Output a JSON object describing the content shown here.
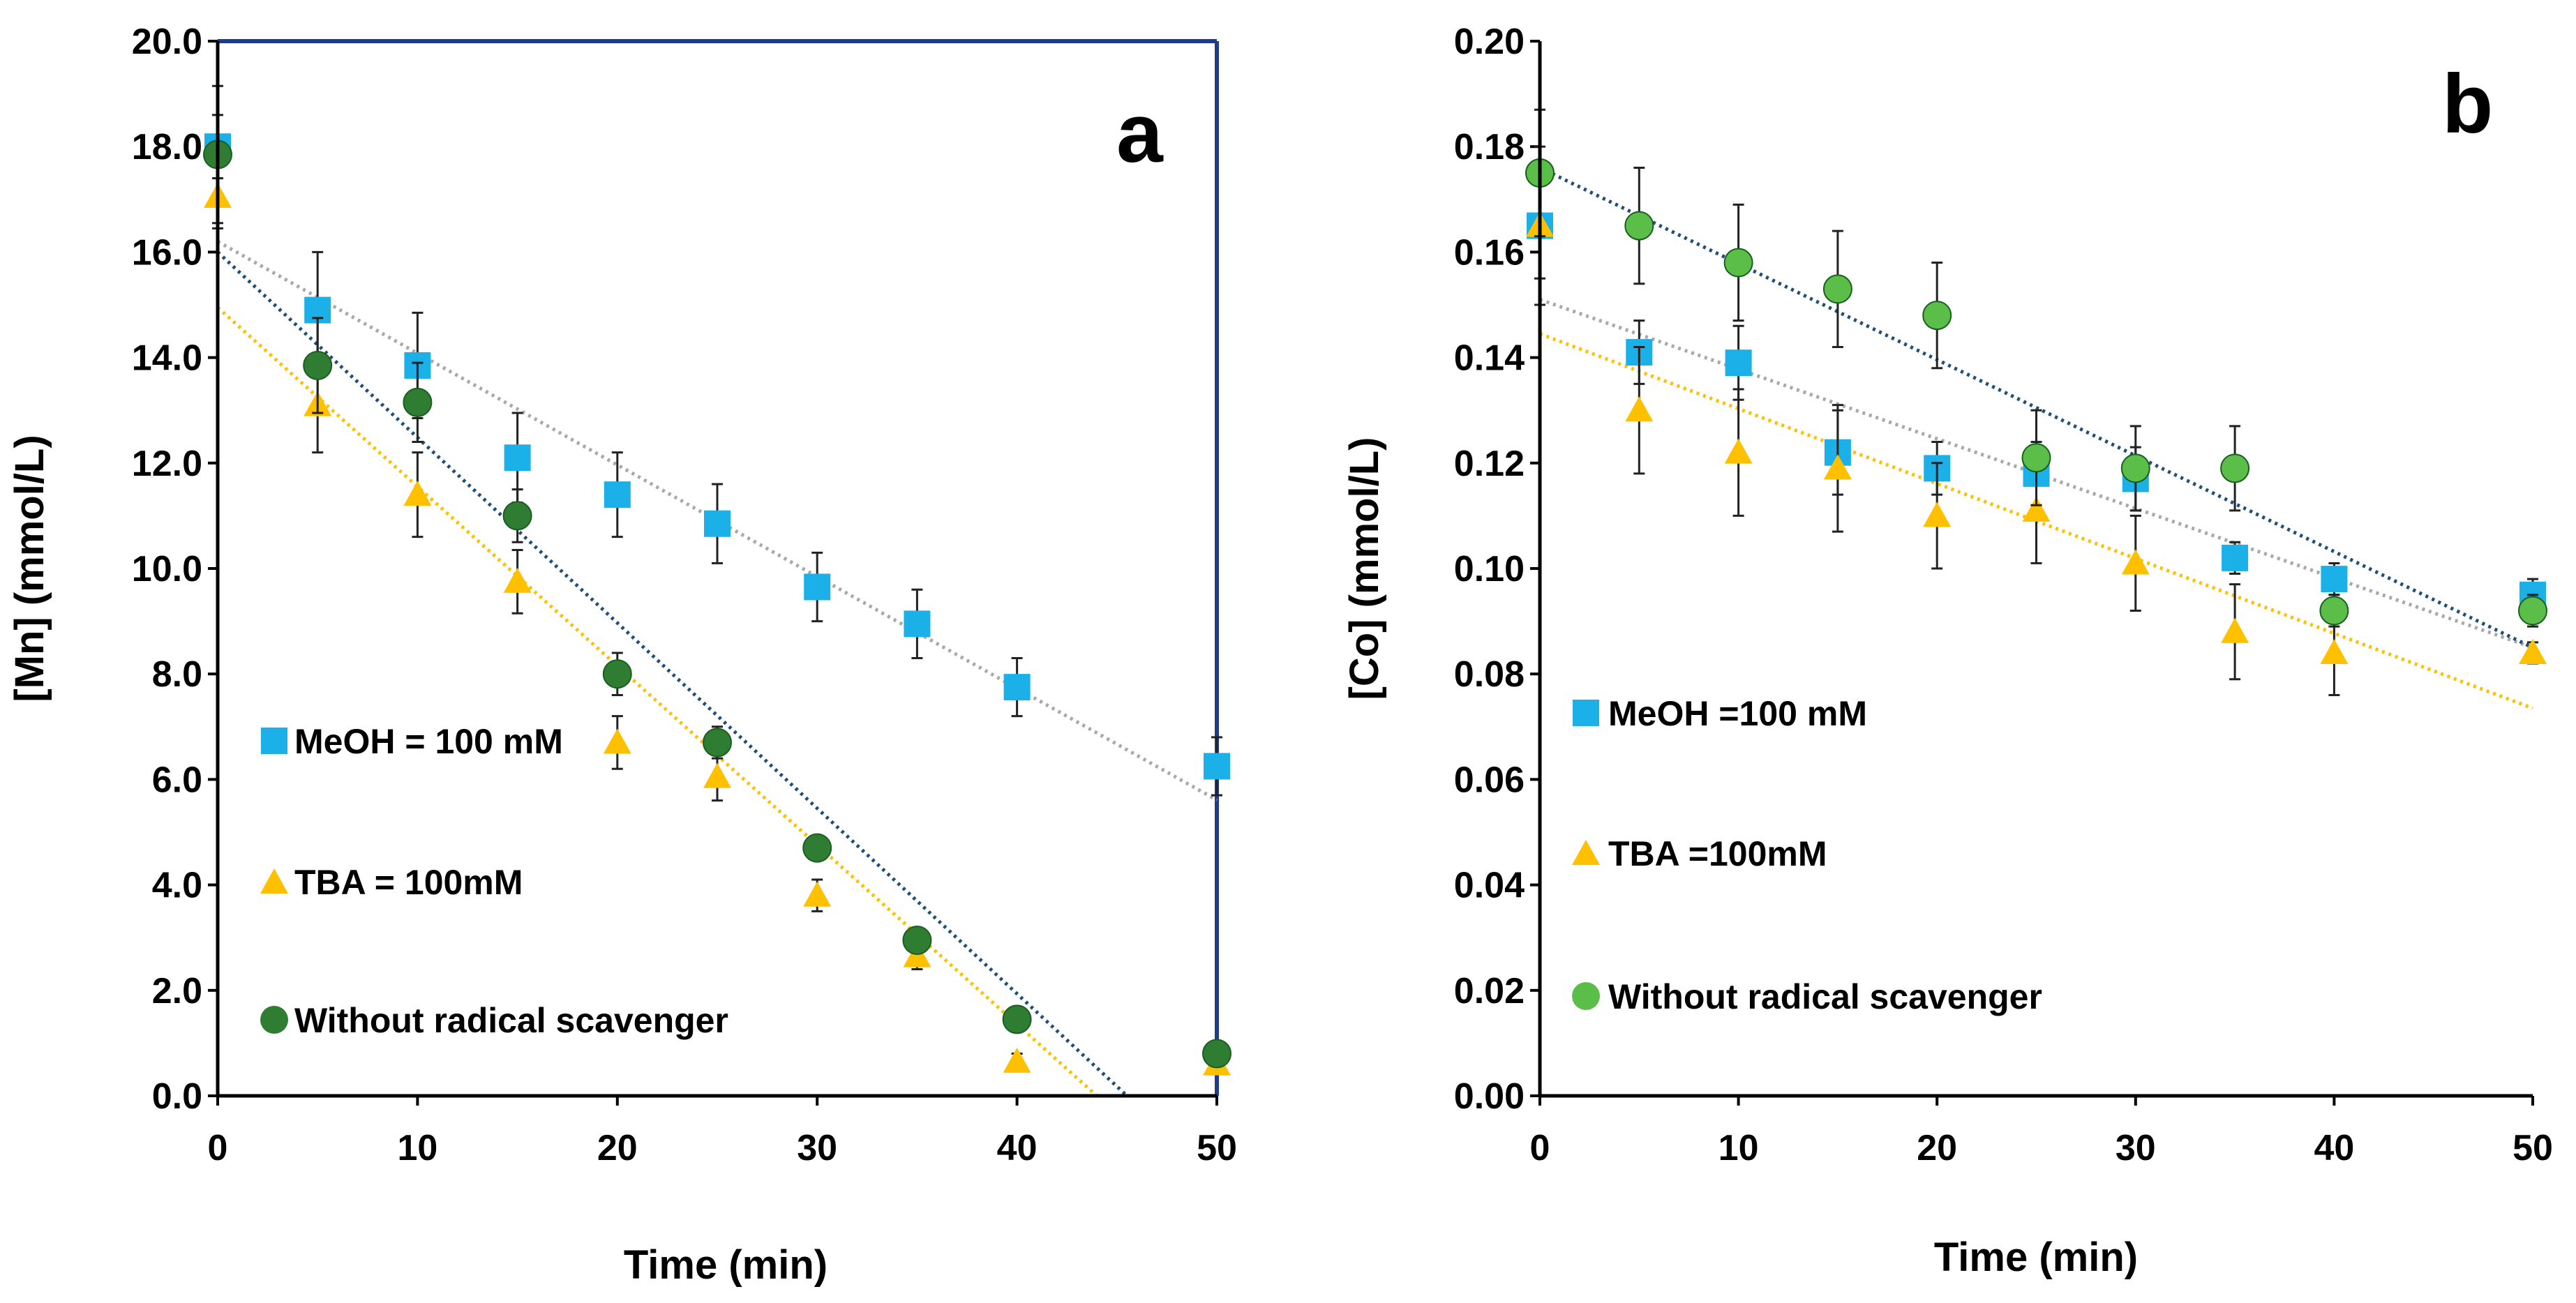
{
  "chart_data": [
    {
      "type": "scatter",
      "panel": "a",
      "xlabel": "Time (min)",
      "ylabel": "[Mn] (mmol/L)",
      "xlim": [
        0,
        50
      ],
      "ylim": [
        0,
        20
      ],
      "xticks": [
        "0",
        "10",
        "20",
        "30",
        "40",
        "50"
      ],
      "yticks": [
        "0.0",
        "2.0",
        "4.0",
        "6.0",
        "8.0",
        "10.0",
        "12.0",
        "14.0",
        "16.0",
        "18.0",
        "20.0"
      ],
      "legend": [
        "MeOH = 100 mM",
        "TBA = 100mM",
        "Without radical scavenger"
      ],
      "series": [
        {
          "name": "MeOH = 100 mM",
          "marker": "square",
          "color": "#1CB0E8",
          "trend_color": "#A9A9A9",
          "x": [
            0,
            5,
            10,
            15,
            20,
            25,
            30,
            35,
            40,
            50
          ],
          "y": [
            18.0,
            14.9,
            13.85,
            12.1,
            11.4,
            10.85,
            9.65,
            8.95,
            7.75,
            6.25
          ],
          "err": [
            0.6,
            1.1,
            1.0,
            0.85,
            0.8,
            0.75,
            0.65,
            0.65,
            0.55,
            0.55
          ],
          "trend": [
            16.2,
            -0.2118
          ]
        },
        {
          "name": "TBA = 100mM",
          "marker": "triangle",
          "color": "#FFC000",
          "trend_color": "#FFC000",
          "x": [
            0,
            5,
            10,
            15,
            20,
            25,
            30,
            35,
            40,
            50
          ],
          "y": [
            17.05,
            13.1,
            11.4,
            9.75,
            6.7,
            6.05,
            3.8,
            2.65,
            0.65,
            0.6
          ],
          "err": [
            0.6,
            0.9,
            0.8,
            0.6,
            0.5,
            0.45,
            0.3,
            0.25,
            0.15,
            0.1
          ],
          "trend": [
            14.95,
            -0.3398
          ]
        },
        {
          "name": "Without radical scavenger",
          "marker": "circle",
          "color": "#2E7D32",
          "trend_color": "#1F4E79",
          "x": [
            0,
            5,
            10,
            15,
            20,
            25,
            30,
            35,
            40,
            50
          ],
          "y": [
            17.85,
            13.85,
            13.15,
            11.0,
            8.0,
            6.7,
            4.7,
            2.95,
            1.45,
            0.8
          ],
          "err": [
            1.3,
            0.9,
            0.75,
            0.5,
            0.4,
            0.3,
            0.2,
            0.15,
            0.1,
            0.1
          ],
          "trend": [
            16.0,
            -0.3516
          ]
        }
      ]
    },
    {
      "type": "scatter",
      "panel": "b",
      "xlabel": "Time (min)",
      "ylabel": "[Co] (mmol/L)",
      "xlim": [
        0,
        50
      ],
      "ylim": [
        0,
        0.2
      ],
      "xticks": [
        "0",
        "10",
        "20",
        "30",
        "40",
        "50"
      ],
      "yticks": [
        "0.00",
        "0.02",
        "0.04",
        "0.06",
        "0.08",
        "0.10",
        "0.12",
        "0.14",
        "0.16",
        "0.18",
        "0.20"
      ],
      "legend": [
        "MeOH =100 mM",
        "TBA =100mM",
        "Without radical scavenger"
      ],
      "series": [
        {
          "name": "MeOH =100 mM",
          "marker": "square",
          "color": "#1CB0E8",
          "trend_color": "#A9A9A9",
          "x": [
            0,
            5,
            10,
            15,
            20,
            25,
            30,
            35,
            40,
            50
          ],
          "y": [
            0.165,
            0.141,
            0.139,
            0.122,
            0.119,
            0.118,
            0.117,
            0.102,
            0.098,
            0.095
          ],
          "err": [
            0.015,
            0.006,
            0.007,
            0.008,
            0.005,
            0.006,
            0.006,
            0.003,
            0.003,
            0.003
          ],
          "trend": [
            0.151,
            -0.00132
          ]
        },
        {
          "name": "TBA =100mM",
          "marker": "triangle",
          "color": "#FFC000",
          "trend_color": "#FFC000",
          "x": [
            0,
            5,
            10,
            15,
            20,
            25,
            30,
            35,
            40,
            50
          ],
          "y": [
            0.165,
            0.13,
            0.122,
            0.119,
            0.11,
            0.111,
            0.101,
            0.088,
            0.084,
            0.084
          ],
          "err": [
            0.01,
            0.012,
            0.012,
            0.012,
            0.01,
            0.01,
            0.009,
            0.009,
            0.008,
            0.002
          ],
          "trend": [
            0.1445,
            -0.00142
          ]
        },
        {
          "name": "Without radical scavenger",
          "marker": "circle",
          "color": "#5BBE48",
          "trend_color": "#1F4E79",
          "x": [
            0,
            5,
            10,
            15,
            20,
            25,
            30,
            35,
            40,
            50
          ],
          "y": [
            0.175,
            0.165,
            0.158,
            0.153,
            0.148,
            0.121,
            0.119,
            0.119,
            0.092,
            0.092
          ],
          "err": [
            0.012,
            0.011,
            0.011,
            0.011,
            0.01,
            0.009,
            0.008,
            0.008,
            0.003,
            0.003
          ],
          "trend": [
            0.176,
            -0.00182
          ]
        }
      ]
    }
  ]
}
